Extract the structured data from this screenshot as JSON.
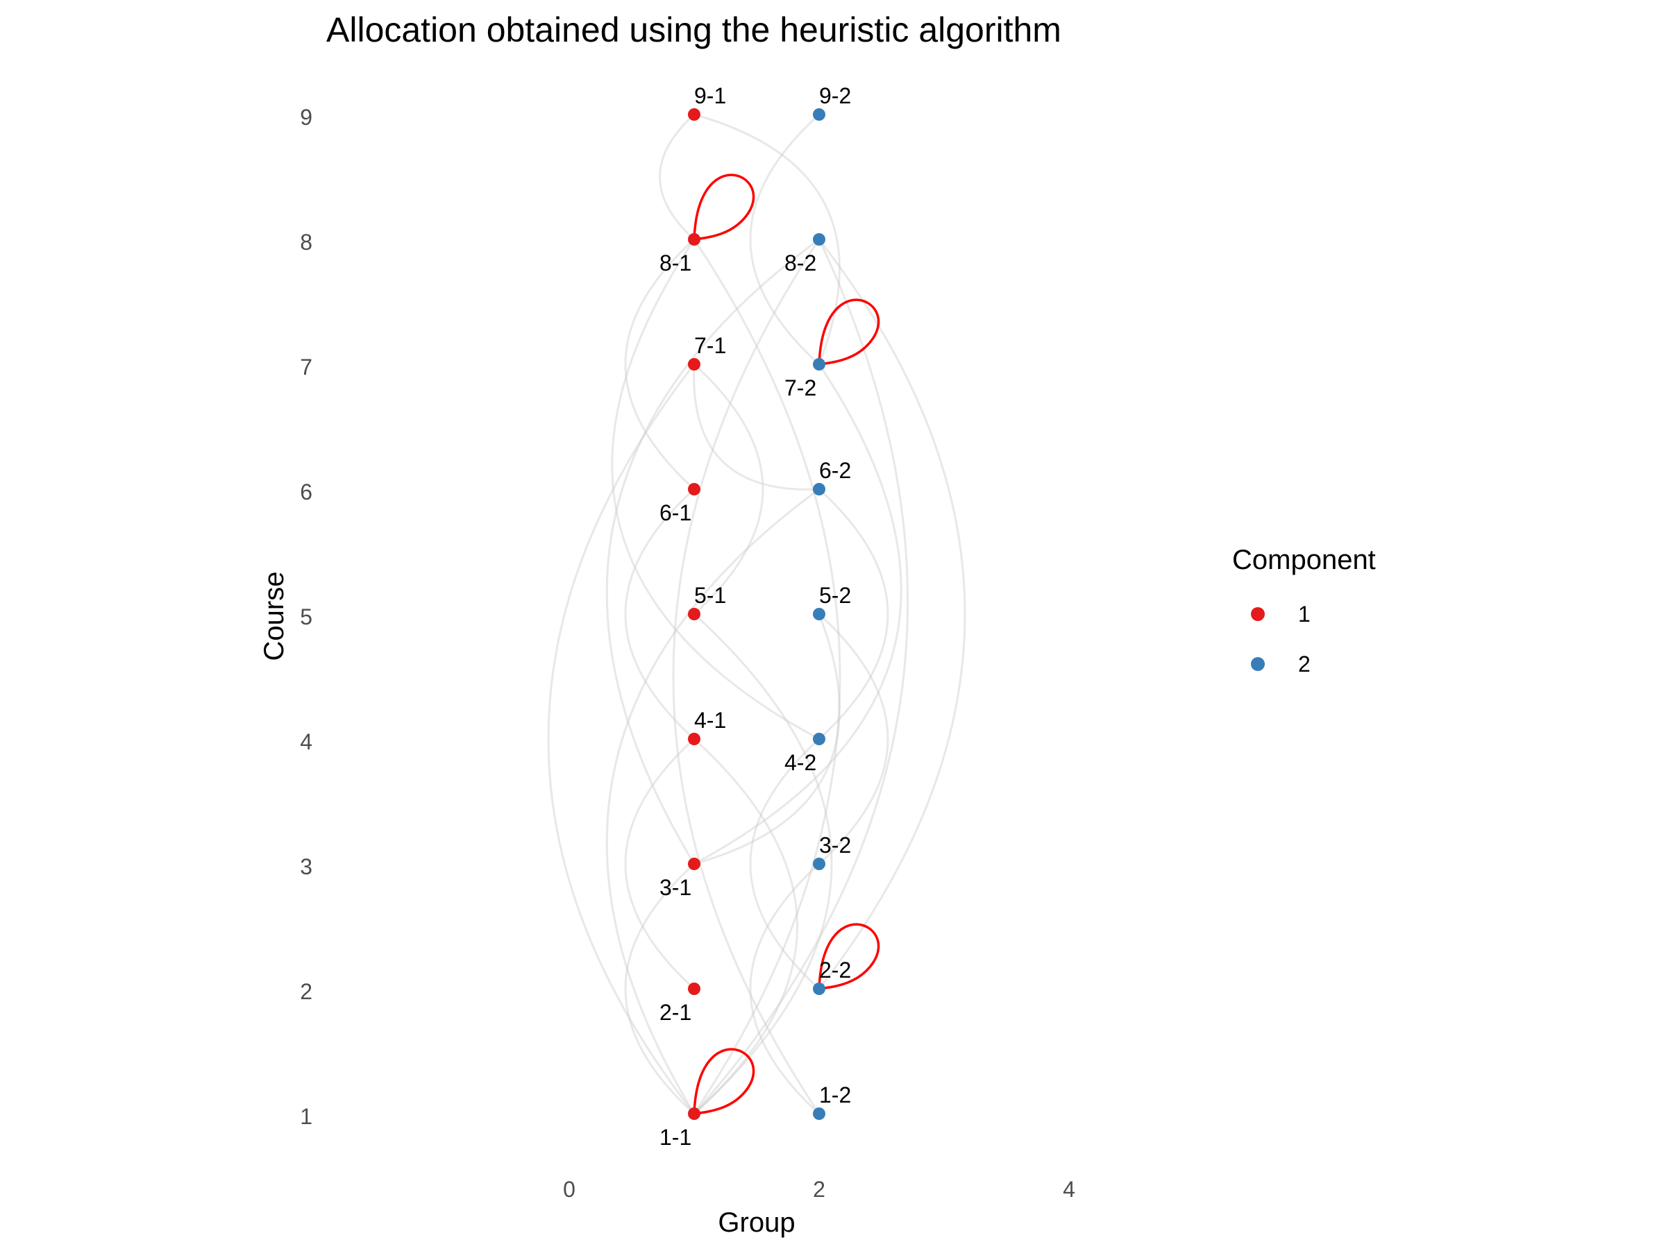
{
  "chart_data": {
    "type": "scatter",
    "title": "Allocation obtained using the heuristic algorithm",
    "xlabel": "Group",
    "ylabel": "Course",
    "xlim": [
      -2.3,
      5.3
    ],
    "ylim": [
      0.5,
      9.5
    ],
    "xticks": [
      "0",
      "2",
      "4"
    ],
    "yticks": [
      "1",
      "2",
      "3",
      "4",
      "5",
      "6",
      "7",
      "8",
      "9"
    ],
    "grid": false,
    "legend": {
      "title": "Component",
      "position": "right",
      "entries": [
        {
          "label": "1",
          "color": "#e41a1c"
        },
        {
          "label": "2",
          "color": "#377eb8"
        }
      ]
    },
    "nodes": [
      {
        "id": "1-1",
        "x": 1,
        "y": 1,
        "component": "1"
      },
      {
        "id": "2-1",
        "x": 1,
        "y": 2,
        "component": "1"
      },
      {
        "id": "3-1",
        "x": 1,
        "y": 3,
        "component": "1"
      },
      {
        "id": "4-1",
        "x": 1,
        "y": 4,
        "component": "1"
      },
      {
        "id": "5-1",
        "x": 1,
        "y": 5,
        "component": "1"
      },
      {
        "id": "6-1",
        "x": 1,
        "y": 6,
        "component": "1"
      },
      {
        "id": "7-1",
        "x": 1,
        "y": 7,
        "component": "1"
      },
      {
        "id": "8-1",
        "x": 1,
        "y": 8,
        "component": "1"
      },
      {
        "id": "9-1",
        "x": 1,
        "y": 9,
        "component": "1"
      },
      {
        "id": "1-2",
        "x": 2,
        "y": 1,
        "component": "2"
      },
      {
        "id": "2-2",
        "x": 2,
        "y": 2,
        "component": "2"
      },
      {
        "id": "3-2",
        "x": 2,
        "y": 3,
        "component": "2"
      },
      {
        "id": "4-2",
        "x": 2,
        "y": 4,
        "component": "2"
      },
      {
        "id": "5-2",
        "x": 2,
        "y": 5,
        "component": "2"
      },
      {
        "id": "6-2",
        "x": 2,
        "y": 6,
        "component": "2"
      },
      {
        "id": "7-2",
        "x": 2,
        "y": 7,
        "component": "2"
      },
      {
        "id": "8-2",
        "x": 2,
        "y": 8,
        "component": "2"
      },
      {
        "id": "9-2",
        "x": 2,
        "y": 9,
        "component": "2"
      }
    ],
    "self_loops": [
      "1-1",
      "8-1",
      "7-2",
      "2-2"
    ],
    "self_loop_color": "#ff0000",
    "edges": [
      [
        "1-1",
        "8-1"
      ],
      [
        "1-1",
        "7-1"
      ],
      [
        "1-1",
        "5-1"
      ],
      [
        "1-1",
        "3-1"
      ],
      [
        "1-1",
        "4-1"
      ],
      [
        "1-1",
        "6-2"
      ],
      [
        "1-1",
        "8-2"
      ],
      [
        "2-1",
        "4-1"
      ],
      [
        "3-1",
        "7-2"
      ],
      [
        "3-1",
        "8-2"
      ],
      [
        "3-1",
        "5-2"
      ],
      [
        "4-1",
        "6-1"
      ],
      [
        "5-1",
        "7-1"
      ],
      [
        "6-1",
        "8-1"
      ],
      [
        "7-1",
        "6-2"
      ],
      [
        "8-1",
        "9-1"
      ],
      [
        "8-1",
        "4-2"
      ],
      [
        "9-1",
        "7-2"
      ],
      [
        "9-2",
        "7-2"
      ],
      [
        "8-2",
        "2-2"
      ],
      [
        "8-2",
        "1-2"
      ],
      [
        "6-2",
        "4-2"
      ],
      [
        "4-2",
        "2-2"
      ],
      [
        "5-2",
        "3-2"
      ],
      [
        "3-2",
        "1-2"
      ]
    ],
    "edge_color": "#cccccc"
  }
}
